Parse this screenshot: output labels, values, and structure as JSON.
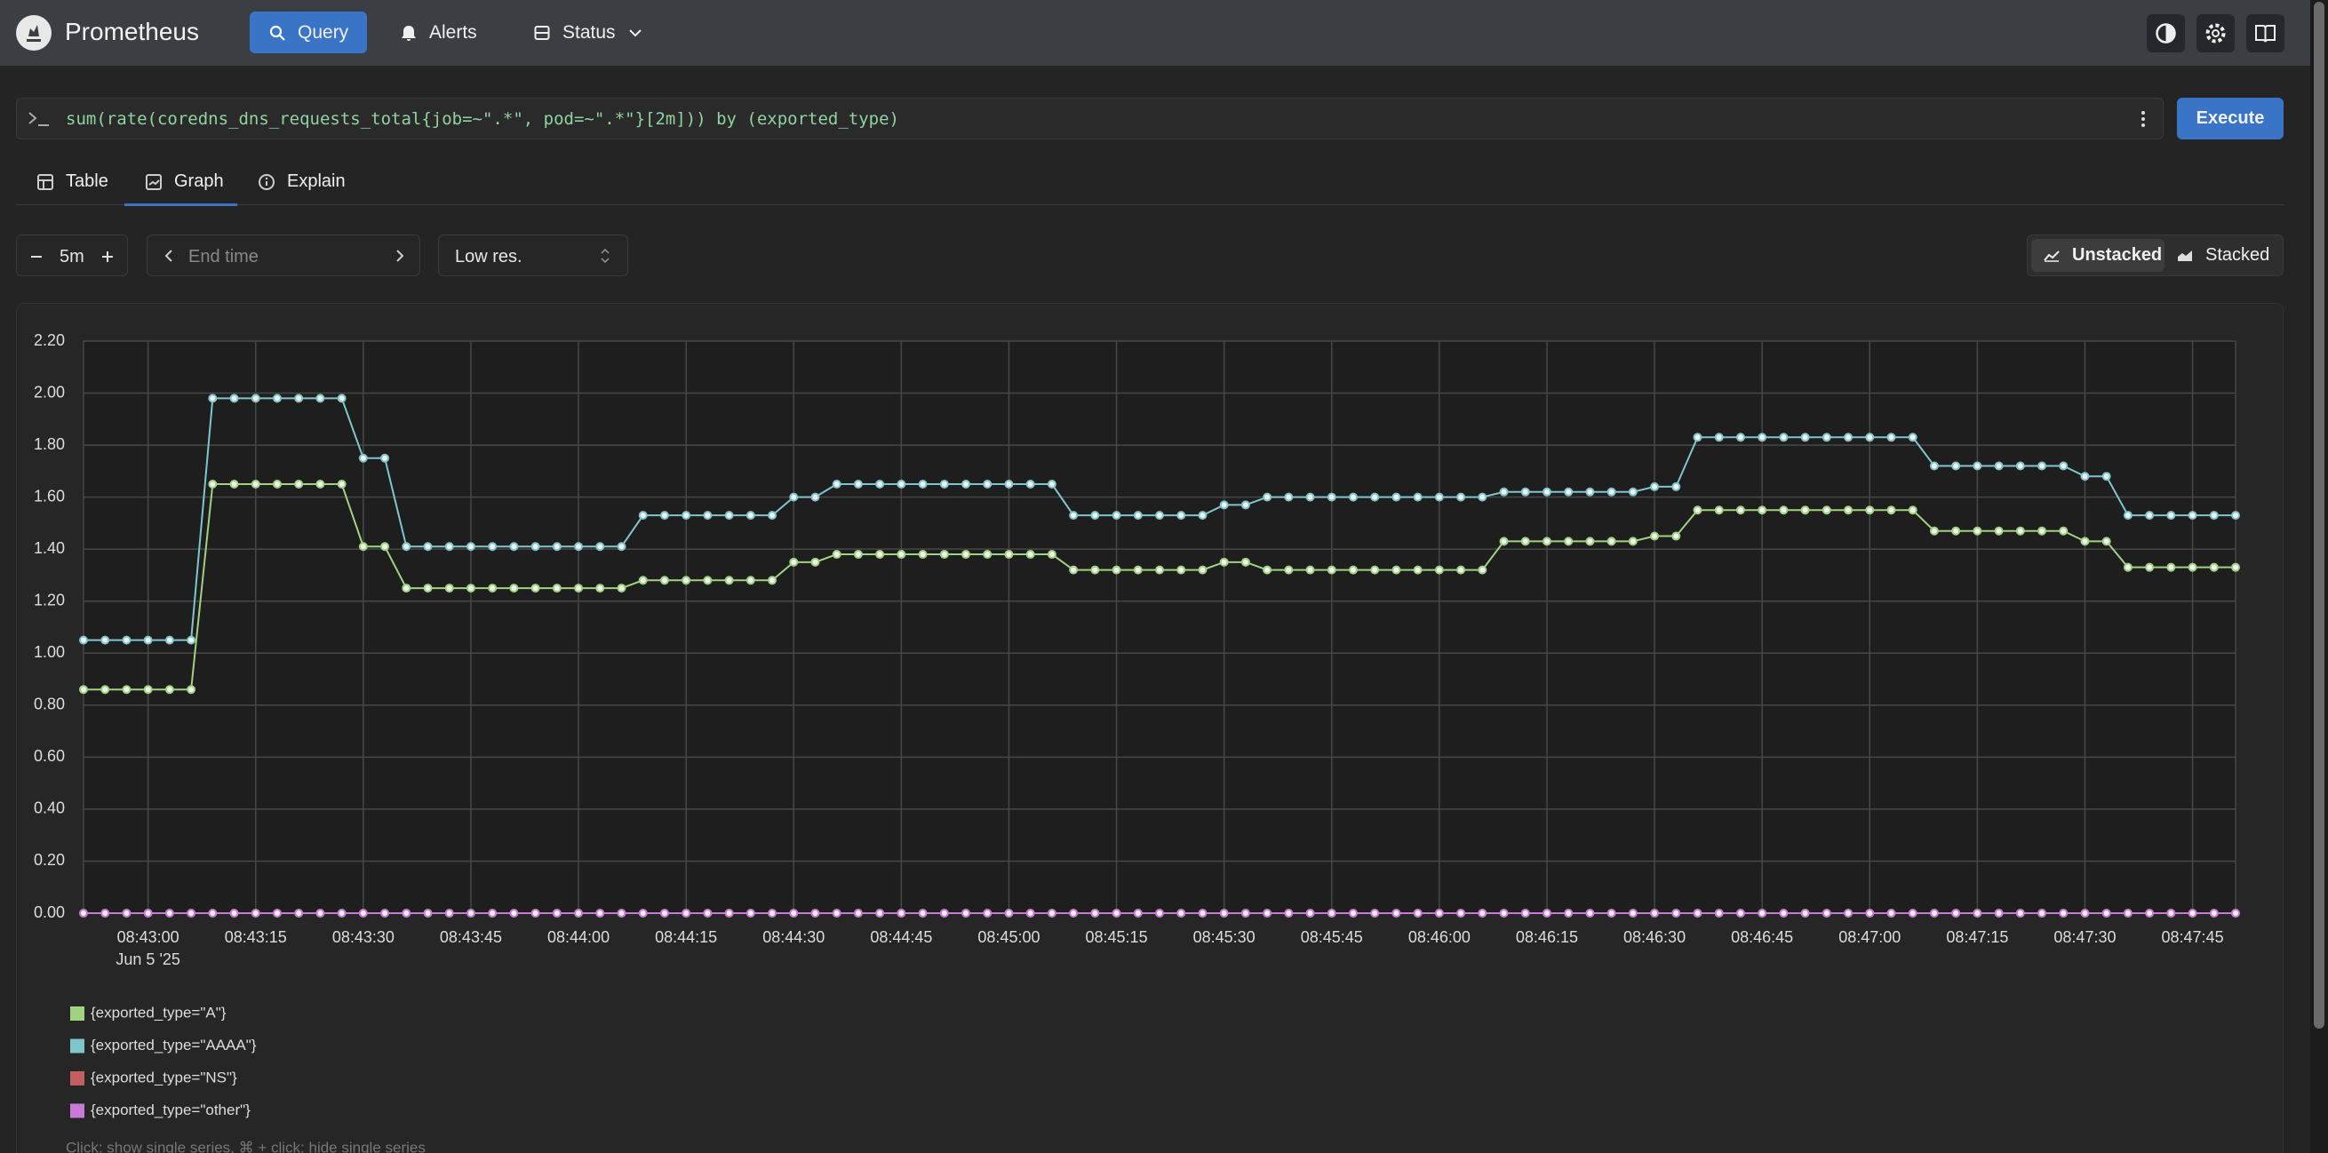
{
  "header": {
    "brand": "Prometheus",
    "nav": [
      "Query",
      "Alerts",
      "Status"
    ]
  },
  "query": "sum(rate(coredns_dns_requests_total{job=~\".*\", pod=~\".*\"}[2m])) by (exported_type)",
  "execute": "Execute",
  "tabs": [
    "Table",
    "Graph",
    "Explain"
  ],
  "controls": {
    "range": "5m",
    "end_time": "End time",
    "resolution": "Low res.",
    "modes": [
      "Unstacked",
      "Stacked"
    ]
  },
  "hint": "Click: show single series, ⌘ + click: hide single series",
  "chart_data": {
    "type": "line",
    "x": [
      "08:42:51",
      "08:42:54",
      "08:42:57",
      "08:43:00",
      "08:43:03",
      "08:43:06",
      "08:43:09",
      "08:43:12",
      "08:43:15",
      "08:43:18",
      "08:43:21",
      "08:43:24",
      "08:43:27",
      "08:43:30",
      "08:43:33",
      "08:43:36",
      "08:43:39",
      "08:43:42",
      "08:43:45",
      "08:43:48",
      "08:43:51",
      "08:43:54",
      "08:43:57",
      "08:44:00",
      "08:44:03",
      "08:44:06",
      "08:44:09",
      "08:44:12",
      "08:44:15",
      "08:44:18",
      "08:44:21",
      "08:44:24",
      "08:44:27",
      "08:44:30",
      "08:44:33",
      "08:44:36",
      "08:44:39",
      "08:44:42",
      "08:44:45",
      "08:44:48",
      "08:44:51",
      "08:44:54",
      "08:44:57",
      "08:45:00",
      "08:45:03",
      "08:45:06",
      "08:45:09",
      "08:45:12",
      "08:45:15",
      "08:45:18",
      "08:45:21",
      "08:45:24",
      "08:45:27",
      "08:45:30",
      "08:45:33",
      "08:45:36",
      "08:45:39",
      "08:45:42",
      "08:45:45",
      "08:45:48",
      "08:45:51",
      "08:45:54",
      "08:45:57",
      "08:46:00",
      "08:46:03",
      "08:46:06",
      "08:46:09",
      "08:46:12",
      "08:46:15",
      "08:46:18",
      "08:46:21",
      "08:46:24",
      "08:46:27",
      "08:46:30",
      "08:46:33",
      "08:46:36",
      "08:46:39",
      "08:46:42",
      "08:46:45",
      "08:46:48",
      "08:46:51",
      "08:46:54",
      "08:46:57",
      "08:47:00",
      "08:47:03",
      "08:47:06",
      "08:47:09",
      "08:47:12",
      "08:47:15",
      "08:47:18",
      "08:47:21",
      "08:47:24",
      "08:47:27",
      "08:47:30",
      "08:47:33",
      "08:47:36",
      "08:47:39",
      "08:47:42",
      "08:47:45",
      "08:47:48",
      "08:47:51"
    ],
    "xlim": [
      "08:42:51",
      "08:47:51"
    ],
    "xticks": [
      "08:43:00",
      "08:43:15",
      "08:43:30",
      "08:43:45",
      "08:44:00",
      "08:44:15",
      "08:44:30",
      "08:44:45",
      "08:45:00",
      "08:45:15",
      "08:45:30",
      "08:45:45",
      "08:46:00",
      "08:46:15",
      "08:46:30",
      "08:46:45",
      "08:47:00",
      "08:47:15",
      "08:47:30",
      "08:47:45"
    ],
    "xtick_sublabel": "Jun 5 '25",
    "ylim": [
      0,
      2.2
    ],
    "yticks": [
      {
        "value": 0,
        "label": "0.00"
      },
      {
        "value": 0.2,
        "label": "0.20"
      },
      {
        "value": 0.4,
        "label": "0.40"
      },
      {
        "value": 0.6,
        "label": "0.60"
      },
      {
        "value": 0.8,
        "label": "0.80"
      },
      {
        "value": 1,
        "label": "1.00"
      },
      {
        "value": 1.2,
        "label": "1.20"
      },
      {
        "value": 1.4,
        "label": "1.40"
      },
      {
        "value": 1.6,
        "label": "1.60"
      },
      {
        "value": 1.8,
        "label": "1.80"
      },
      {
        "value": 2,
        "label": "2.00"
      },
      {
        "value": 2.2,
        "label": "2.20"
      }
    ],
    "grid": true,
    "series": [
      {
        "name": "{exported_type=\"A\"}",
        "color": "#9fd37f",
        "values": [
          0.86,
          0.86,
          0.86,
          0.86,
          0.86,
          0.86,
          1.65,
          1.65,
          1.65,
          1.65,
          1.65,
          1.65,
          1.65,
          1.41,
          1.41,
          1.25,
          1.25,
          1.25,
          1.25,
          1.25,
          1.25,
          1.25,
          1.25,
          1.25,
          1.25,
          1.25,
          1.28,
          1.28,
          1.28,
          1.28,
          1.28,
          1.28,
          1.28,
          1.35,
          1.35,
          1.38,
          1.38,
          1.38,
          1.38,
          1.38,
          1.38,
          1.38,
          1.38,
          1.38,
          1.38,
          1.38,
          1.32,
          1.32,
          1.32,
          1.32,
          1.32,
          1.32,
          1.32,
          1.35,
          1.35,
          1.32,
          1.32,
          1.32,
          1.32,
          1.32,
          1.32,
          1.32,
          1.32,
          1.32,
          1.32,
          1.32,
          1.43,
          1.43,
          1.43,
          1.43,
          1.43,
          1.43,
          1.43,
          1.45,
          1.45,
          1.55,
          1.55,
          1.55,
          1.55,
          1.55,
          1.55,
          1.55,
          1.55,
          1.55,
          1.55,
          1.55,
          1.47,
          1.47,
          1.47,
          1.47,
          1.47,
          1.47,
          1.47,
          1.43,
          1.43,
          1.33,
          1.33,
          1.33,
          1.33,
          1.33,
          1.33
        ]
      },
      {
        "name": "{exported_type=\"AAAA\"}",
        "color": "#7fc6cc",
        "values": [
          1.05,
          1.05,
          1.05,
          1.05,
          1.05,
          1.05,
          1.98,
          1.98,
          1.98,
          1.98,
          1.98,
          1.98,
          1.98,
          1.75,
          1.75,
          1.41,
          1.41,
          1.41,
          1.41,
          1.41,
          1.41,
          1.41,
          1.41,
          1.41,
          1.41,
          1.41,
          1.53,
          1.53,
          1.53,
          1.53,
          1.53,
          1.53,
          1.53,
          1.6,
          1.6,
          1.65,
          1.65,
          1.65,
          1.65,
          1.65,
          1.65,
          1.65,
          1.65,
          1.65,
          1.65,
          1.65,
          1.53,
          1.53,
          1.53,
          1.53,
          1.53,
          1.53,
          1.53,
          1.57,
          1.57,
          1.6,
          1.6,
          1.6,
          1.6,
          1.6,
          1.6,
          1.6,
          1.6,
          1.6,
          1.6,
          1.6,
          1.62,
          1.62,
          1.62,
          1.62,
          1.62,
          1.62,
          1.62,
          1.64,
          1.64,
          1.83,
          1.83,
          1.83,
          1.83,
          1.83,
          1.83,
          1.83,
          1.83,
          1.83,
          1.83,
          1.83,
          1.72,
          1.72,
          1.72,
          1.72,
          1.72,
          1.72,
          1.72,
          1.68,
          1.68,
          1.53,
          1.53,
          1.53,
          1.53,
          1.53,
          1.53
        ]
      },
      {
        "name": "{exported_type=\"NS\"}",
        "color": "#c45f5f",
        "values": [
          0,
          0,
          0,
          0,
          0,
          0,
          0,
          0,
          0,
          0,
          0,
          0,
          0,
          0,
          0,
          0,
          0,
          0,
          0,
          0,
          0,
          0,
          0,
          0,
          0,
          0,
          0,
          0,
          0,
          0,
          0,
          0,
          0,
          0,
          0,
          0,
          0,
          0,
          0,
          0,
          0,
          0,
          0,
          0,
          0,
          0,
          0,
          0,
          0,
          0,
          0,
          0,
          0,
          0,
          0,
          0,
          0,
          0,
          0,
          0,
          0,
          0,
          0,
          0,
          0,
          0,
          0,
          0,
          0,
          0,
          0,
          0,
          0,
          0,
          0,
          0,
          0,
          0,
          0,
          0,
          0,
          0,
          0,
          0,
          0,
          0,
          0,
          0,
          0,
          0,
          0,
          0,
          0,
          0,
          0,
          0,
          0,
          0,
          0,
          0,
          0
        ]
      },
      {
        "name": "{exported_type=\"other\"}",
        "color": "#c77ad6",
        "values": [
          0,
          0,
          0,
          0,
          0,
          0,
          0,
          0,
          0,
          0,
          0,
          0,
          0,
          0,
          0,
          0,
          0,
          0,
          0,
          0,
          0,
          0,
          0,
          0,
          0,
          0,
          0,
          0,
          0,
          0,
          0,
          0,
          0,
          0,
          0,
          0,
          0,
          0,
          0,
          0,
          0,
          0,
          0,
          0,
          0,
          0,
          0,
          0,
          0,
          0,
          0,
          0,
          0,
          0,
          0,
          0,
          0,
          0,
          0,
          0,
          0,
          0,
          0,
          0,
          0,
          0,
          0,
          0,
          0,
          0,
          0,
          0,
          0,
          0,
          0,
          0,
          0,
          0,
          0,
          0,
          0,
          0,
          0,
          0,
          0,
          0,
          0,
          0,
          0,
          0,
          0,
          0,
          0,
          0,
          0,
          0,
          0,
          0,
          0,
          0,
          0
        ]
      }
    ]
  }
}
